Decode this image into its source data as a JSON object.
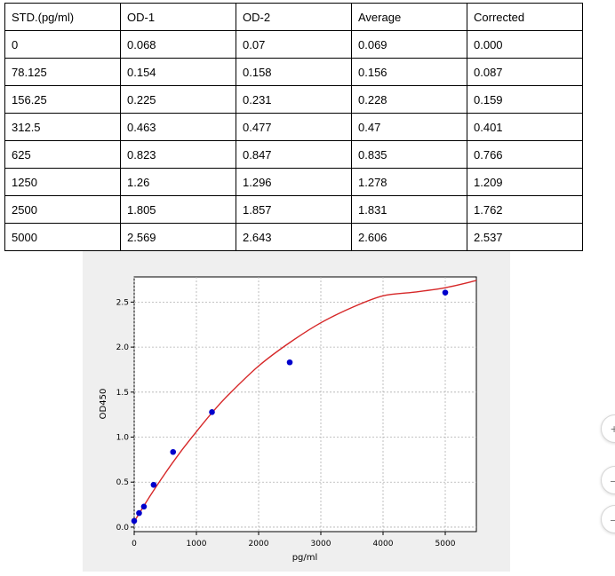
{
  "table": {
    "headers": [
      "STD.(pg/ml)",
      "OD-1",
      "OD-2",
      "Average",
      "Corrected"
    ],
    "rows": [
      [
        "0",
        "0.068",
        "0.07",
        "0.069",
        "0.000"
      ],
      [
        "78.125",
        "0.154",
        "0.158",
        "0.156",
        "0.087"
      ],
      [
        "156.25",
        "0.225",
        "0.231",
        "0.228",
        "0.159"
      ],
      [
        "312.5",
        "0.463",
        "0.477",
        "0.47",
        "0.401"
      ],
      [
        "625",
        "0.823",
        "0.847",
        "0.835",
        "0.766"
      ],
      [
        "1250",
        "1.26",
        "1.296",
        "1.278",
        "1.209"
      ],
      [
        "2500",
        "1.805",
        "1.857",
        "1.831",
        "1.762"
      ],
      [
        "5000",
        "2.569",
        "2.643",
        "2.606",
        "2.537"
      ]
    ]
  },
  "chart_data": {
    "type": "scatter",
    "title": "",
    "xlabel": "pg/ml",
    "ylabel": "OD450",
    "xlim": [
      0,
      5500
    ],
    "ylim": [
      -0.05,
      2.78
    ],
    "xticks": [
      0,
      1000,
      2000,
      3000,
      4000,
      5000
    ],
    "yticks": [
      0.0,
      0.5,
      1.0,
      1.5,
      2.0,
      2.5
    ],
    "xtick_labels": [
      "0",
      "1000",
      "2000",
      "3000",
      "4000",
      "5000"
    ],
    "ytick_labels": [
      "0.0",
      "0.5",
      "1.0",
      "1.5",
      "2.0",
      "2.5"
    ],
    "grid": true,
    "series": [
      {
        "kind": "points",
        "color": "#0000cc",
        "x": [
          0,
          78.125,
          156.25,
          312.5,
          625,
          1250,
          2500,
          5000
        ],
        "y": [
          0.069,
          0.156,
          0.228,
          0.47,
          0.835,
          1.278,
          1.831,
          2.606
        ]
      },
      {
        "kind": "fit-curve",
        "color": "#d62728",
        "x": [
          0,
          250,
          500,
          750,
          1000,
          1250,
          1500,
          2000,
          2500,
          3000,
          3500,
          4000,
          4500,
          5000,
          5500
        ],
        "y": [
          0.06,
          0.34,
          0.6,
          0.84,
          1.06,
          1.27,
          1.46,
          1.79,
          2.05,
          2.27,
          2.44,
          2.57,
          2.61,
          2.66,
          2.74
        ]
      }
    ]
  },
  "side_buttons": [
    "+",
    "–",
    "–"
  ],
  "colors": {
    "background_panel": "#efefef",
    "plot_bg": "#ffffff",
    "points": "#0000cc",
    "fit": "#d62728"
  }
}
